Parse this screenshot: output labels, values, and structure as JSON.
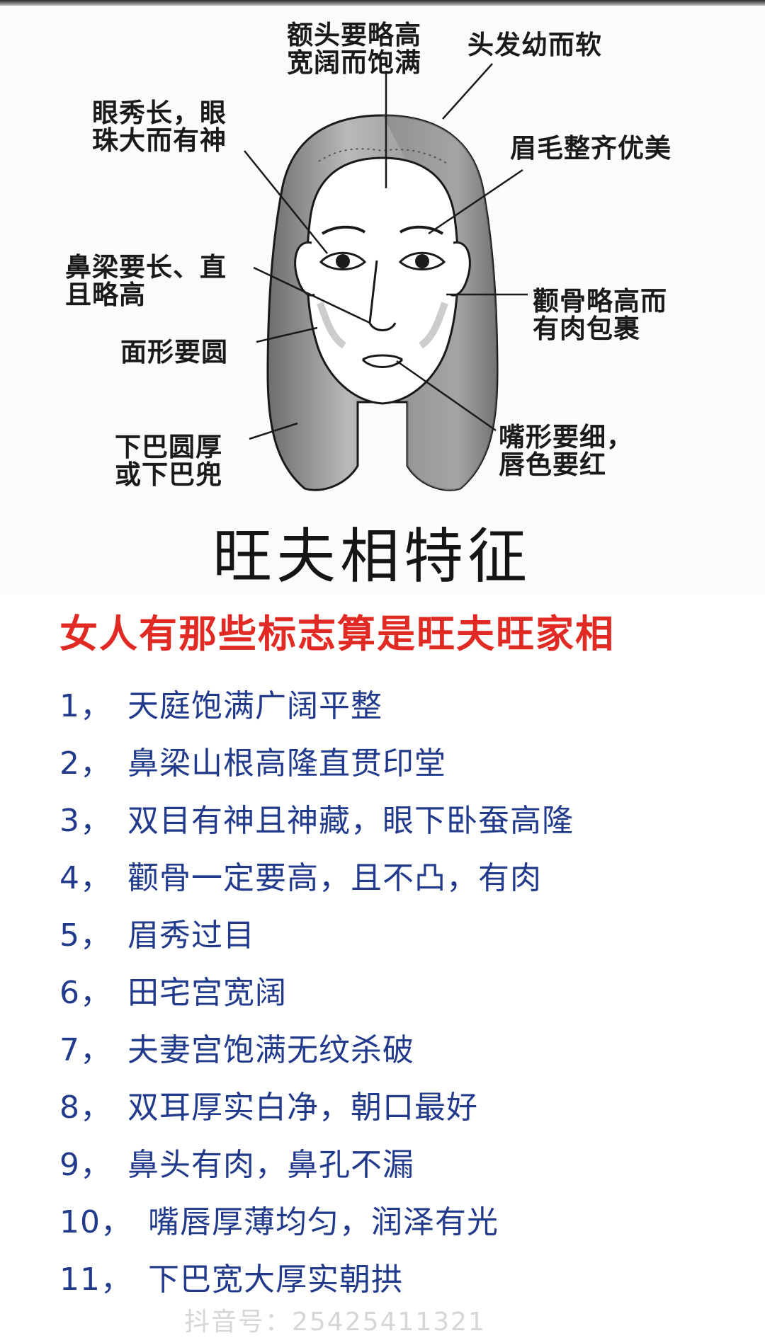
{
  "diagram": {
    "title": "旺夫相特征",
    "annotations": {
      "forehead": "额头要略高\n宽阔而饱满",
      "hair": "头发幼而软",
      "eyes": "眼秀长，眼\n珠大而有神",
      "eyebrows": "眉毛整齐优美",
      "nose": "鼻梁要长、直\n且略高",
      "cheekbone": "颧骨略高而\n有肉包裹",
      "face": "面形要圆",
      "chin": "下巴圆厚\n或下巴兜",
      "mouth": "嘴形要细，\n唇色要红"
    }
  },
  "article": {
    "headline": "女人有那些标志算是旺夫旺家相",
    "items": [
      {
        "num": "1，",
        "text": "天庭饱满广阔平整"
      },
      {
        "num": "2，",
        "text": "鼻梁山根高隆直贯印堂"
      },
      {
        "num": "3，",
        "text": "双目有神且神藏，眼下卧蚕高隆"
      },
      {
        "num": "4，",
        "text": "颧骨一定要高，且不凸，有肉"
      },
      {
        "num": "5，",
        "text": "眉秀过目"
      },
      {
        "num": "6，",
        "text": "田宅宫宽阔"
      },
      {
        "num": "7，",
        "text": "夫妻宫饱满无纹杀破"
      },
      {
        "num": "8，",
        "text": "双耳厚实白净，朝口最好"
      },
      {
        "num": "9，",
        "text": "鼻头有肉，鼻孔不漏"
      },
      {
        "num": "10，",
        "text": "嘴唇厚薄均匀，润泽有光"
      },
      {
        "num": "11，",
        "text": "下巴宽大厚实朝拱"
      }
    ]
  },
  "watermark": "抖音号：25425411321",
  "colors": {
    "headline": "#e12a23",
    "list_text": "#223a8c",
    "line_art": "#1a1a1a",
    "hair_shade": "#8a8a8a"
  }
}
